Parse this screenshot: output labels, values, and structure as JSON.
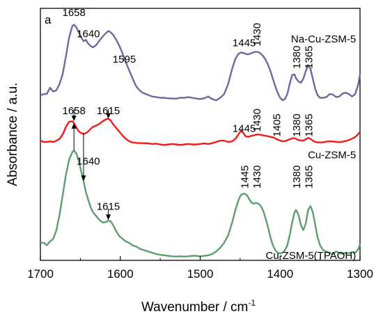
{
  "chart_data": {
    "type": "line",
    "panel_label": "a",
    "xlabel": "Wavenumber / cm",
    "xlabel_superscript": "-1",
    "ylabel": "Absorbance / a.u.",
    "xlim": [
      1700,
      1300
    ],
    "x_reversed": true,
    "xticks": [
      1700,
      1600,
      1500,
      1400,
      1300
    ],
    "y_tick_labels": "none",
    "grid": false,
    "series": [
      {
        "name": "Na-Cu-ZSM-5",
        "color": "#6b6a9e",
        "x": [
          1700,
          1696,
          1692,
          1688,
          1684,
          1680,
          1676,
          1672,
          1668,
          1664,
          1660,
          1658,
          1655,
          1652,
          1649,
          1646,
          1643,
          1640,
          1637,
          1634,
          1630,
          1626,
          1622,
          1618,
          1615,
          1612,
          1609,
          1605,
          1601,
          1597,
          1595,
          1591,
          1587,
          1583,
          1580,
          1576,
          1572,
          1568,
          1564,
          1560,
          1555,
          1550,
          1545,
          1540,
          1535,
          1530,
          1525,
          1520,
          1515,
          1510,
          1505,
          1500,
          1495,
          1490,
          1485,
          1480,
          1475,
          1470,
          1465,
          1460,
          1456,
          1452,
          1449,
          1445,
          1442,
          1439,
          1436,
          1433,
          1430,
          1427,
          1424,
          1421,
          1418,
          1415,
          1412,
          1409,
          1406,
          1403,
          1400,
          1397,
          1394,
          1391,
          1388,
          1385,
          1382,
          1380,
          1377,
          1374,
          1371,
          1368,
          1365,
          1362,
          1359,
          1356,
          1353,
          1350,
          1346,
          1342,
          1338,
          1334,
          1330,
          1326,
          1322,
          1318,
          1314,
          1310,
          1306,
          1302,
          1300
        ],
        "y": [
          0.655,
          0.66,
          0.66,
          0.685,
          0.67,
          0.675,
          0.7,
          0.74,
          0.81,
          0.885,
          0.93,
          0.935,
          0.925,
          0.905,
          0.885,
          0.87,
          0.875,
          0.86,
          0.85,
          0.845,
          0.855,
          0.872,
          0.888,
          0.902,
          0.91,
          0.905,
          0.895,
          0.875,
          0.85,
          0.82,
          0.8,
          0.77,
          0.74,
          0.71,
          0.69,
          0.675,
          0.665,
          0.66,
          0.655,
          0.65,
          0.648,
          0.645,
          0.645,
          0.643,
          0.642,
          0.642,
          0.645,
          0.645,
          0.648,
          0.645,
          0.642,
          0.64,
          0.643,
          0.65,
          0.64,
          0.635,
          0.645,
          0.66,
          0.7,
          0.76,
          0.8,
          0.82,
          0.825,
          0.822,
          0.818,
          0.818,
          0.822,
          0.826,
          0.828,
          0.826,
          0.82,
          0.81,
          0.795,
          0.775,
          0.75,
          0.72,
          0.69,
          0.665,
          0.645,
          0.635,
          0.64,
          0.66,
          0.7,
          0.735,
          0.738,
          0.722,
          0.71,
          0.705,
          0.72,
          0.75,
          0.775,
          0.76,
          0.72,
          0.68,
          0.655,
          0.645,
          0.645,
          0.648,
          0.66,
          0.658,
          0.648,
          0.65,
          0.662,
          0.665,
          0.66,
          0.65,
          0.66,
          0.7,
          0.74
        ]
      },
      {
        "name": "Cu-ZSM-5",
        "color": "#ee1c1c",
        "x": [
          1700,
          1696,
          1692,
          1688,
          1684,
          1680,
          1676,
          1672,
          1668,
          1664,
          1660,
          1658,
          1655,
          1652,
          1649,
          1646,
          1643,
          1640,
          1637,
          1634,
          1630,
          1626,
          1622,
          1618,
          1615,
          1612,
          1609,
          1605,
          1601,
          1597,
          1593,
          1589,
          1585,
          1580,
          1575,
          1570,
          1565,
          1560,
          1555,
          1550,
          1545,
          1540,
          1535,
          1530,
          1525,
          1520,
          1515,
          1510,
          1505,
          1500,
          1495,
          1490,
          1485,
          1480,
          1475,
          1470,
          1465,
          1460,
          1456,
          1452,
          1449,
          1446,
          1443,
          1440,
          1436,
          1432,
          1428,
          1424,
          1420,
          1416,
          1412,
          1408,
          1405,
          1402,
          1399,
          1396,
          1393,
          1390,
          1386,
          1383,
          1380,
          1377,
          1374,
          1371,
          1368,
          1365,
          1362,
          1359,
          1356,
          1352,
          1348,
          1344,
          1340,
          1336,
          1332,
          1328,
          1324,
          1320,
          1316,
          1312,
          1308,
          1304,
          1300
        ],
        "y": [
          0.475,
          0.47,
          0.47,
          0.472,
          0.47,
          0.475,
          0.482,
          0.5,
          0.53,
          0.55,
          0.552,
          0.545,
          0.528,
          0.512,
          0.505,
          0.502,
          0.505,
          0.512,
          0.522,
          0.53,
          0.535,
          0.542,
          0.552,
          0.56,
          0.562,
          0.555,
          0.54,
          0.525,
          0.51,
          0.495,
          0.482,
          0.473,
          0.468,
          0.466,
          0.465,
          0.465,
          0.464,
          0.462,
          0.463,
          0.46,
          0.458,
          0.46,
          0.462,
          0.46,
          0.458,
          0.46,
          0.462,
          0.46,
          0.46,
          0.462,
          0.464,
          0.462,
          0.465,
          0.47,
          0.475,
          0.475,
          0.47,
          0.472,
          0.482,
          0.5,
          0.515,
          0.505,
          0.492,
          0.49,
          0.494,
          0.497,
          0.5,
          0.498,
          0.495,
          0.493,
          0.49,
          0.487,
          0.482,
          0.478,
          0.474,
          0.472,
          0.474,
          0.478,
          0.483,
          0.485,
          0.482,
          0.477,
          0.476,
          0.475,
          0.48,
          0.486,
          0.482,
          0.475,
          0.47,
          0.468,
          0.468,
          0.47,
          0.472,
          0.472,
          0.471,
          0.47,
          0.47,
          0.472,
          0.475,
          0.48,
          0.485,
          0.495,
          0.51
        ]
      },
      {
        "name": "Cu-ZSM-5(TPAOH)",
        "color": "#5c9e6e",
        "x": [
          1700,
          1696,
          1692,
          1688,
          1684,
          1680,
          1676,
          1672,
          1668,
          1664,
          1660,
          1658,
          1655,
          1652,
          1649,
          1646,
          1643,
          1640,
          1637,
          1634,
          1630,
          1626,
          1622,
          1618,
          1615,
          1612,
          1609,
          1605,
          1601,
          1597,
          1593,
          1589,
          1585,
          1580,
          1575,
          1570,
          1565,
          1560,
          1555,
          1550,
          1545,
          1540,
          1535,
          1530,
          1525,
          1520,
          1515,
          1510,
          1505,
          1500,
          1495,
          1490,
          1485,
          1480,
          1475,
          1470,
          1465,
          1460,
          1456,
          1452,
          1449,
          1445,
          1442,
          1439,
          1436,
          1433,
          1430,
          1427,
          1424,
          1421,
          1418,
          1415,
          1412,
          1409,
          1406,
          1403,
          1400,
          1397,
          1394,
          1391,
          1388,
          1385,
          1382,
          1380,
          1377,
          1374,
          1371,
          1368,
          1365,
          1362,
          1359,
          1356,
          1353,
          1350,
          1346,
          1342,
          1338,
          1334,
          1330,
          1326,
          1322,
          1318,
          1314,
          1310,
          1306,
          1302,
          1300
        ],
        "y": [
          0.07,
          0.07,
          0.06,
          0.075,
          0.085,
          0.12,
          0.18,
          0.26,
          0.34,
          0.4,
          0.43,
          0.435,
          0.425,
          0.395,
          0.355,
          0.315,
          0.27,
          0.24,
          0.21,
          0.19,
          0.175,
          0.16,
          0.15,
          0.152,
          0.158,
          0.155,
          0.14,
          0.115,
          0.095,
          0.085,
          0.075,
          0.07,
          0.06,
          0.055,
          0.045,
          0.04,
          0.035,
          0.03,
          0.025,
          0.022,
          0.02,
          0.018,
          0.016,
          0.015,
          0.016,
          0.015,
          0.016,
          0.018,
          0.018,
          0.016,
          0.018,
          0.02,
          0.025,
          0.035,
          0.05,
          0.07,
          0.1,
          0.15,
          0.2,
          0.24,
          0.26,
          0.265,
          0.26,
          0.245,
          0.23,
          0.225,
          0.228,
          0.225,
          0.215,
          0.195,
          0.165,
          0.13,
          0.09,
          0.06,
          0.04,
          0.03,
          0.028,
          0.03,
          0.04,
          0.06,
          0.1,
          0.15,
          0.19,
          0.2,
          0.18,
          0.14,
          0.12,
          0.145,
          0.2,
          0.215,
          0.19,
          0.14,
          0.09,
          0.06,
          0.04,
          0.035,
          0.03,
          0.025,
          0.035,
          0.03,
          0.025,
          0.03,
          0.028,
          0.032,
          0.03,
          0.045,
          0.065
        ]
      }
    ],
    "series_labels": [
      {
        "text": "Na-Cu-ZSM-5",
        "series": 0
      },
      {
        "text": "Cu-ZSM-5",
        "series": 1
      },
      {
        "text": "Cu-ZSM-5(TPAOH)",
        "series": 2
      }
    ],
    "annotations": [
      {
        "text": "1658",
        "x": 1658,
        "y": 0.97
      },
      {
        "text": "1640",
        "x": 1640,
        "y": 0.885
      },
      {
        "text": "1595",
        "x": 1595,
        "y": 0.785
      },
      {
        "text": "1445",
        "x": 1445,
        "y": 0.85
      },
      {
        "text": "1430",
        "x": 1430,
        "y": 0.85
      },
      {
        "text": "1380",
        "x": 1380,
        "y": 0.76
      },
      {
        "text": "1365",
        "x": 1365,
        "y": 0.76
      },
      {
        "text": "1658",
        "x": 1658,
        "y": 0.58
      },
      {
        "text": "1615",
        "x": 1615,
        "y": 0.58
      },
      {
        "text": "1445",
        "x": 1445,
        "y": 0.51
      },
      {
        "text": "1430",
        "x": 1430,
        "y": 0.51
      },
      {
        "text": "1405",
        "x": 1405,
        "y": 0.49
      },
      {
        "text": "1380",
        "x": 1380,
        "y": 0.49
      },
      {
        "text": "1365",
        "x": 1365,
        "y": 0.49
      },
      {
        "text": "1640",
        "x": 1640,
        "y": 0.38
      },
      {
        "text": "1615",
        "x": 1615,
        "y": 0.2
      },
      {
        "text": "1445",
        "x": 1445,
        "y": 0.285
      },
      {
        "text": "1430",
        "x": 1430,
        "y": 0.285
      },
      {
        "text": "1380",
        "x": 1380,
        "y": 0.285
      },
      {
        "text": "1365",
        "x": 1365,
        "y": 0.285
      }
    ],
    "arrows": [
      {
        "x": 1658,
        "from": 0.6,
        "to": 0.552
      },
      {
        "x": 1615,
        "from": 0.6,
        "to": 0.562
      },
      {
        "x": 1658,
        "from": 0.435,
        "to": 0.545
      },
      {
        "x": 1646,
        "from": 0.505,
        "to": 0.315
      },
      {
        "x": 1615,
        "from": 0.205,
        "to": 0.16
      }
    ]
  }
}
